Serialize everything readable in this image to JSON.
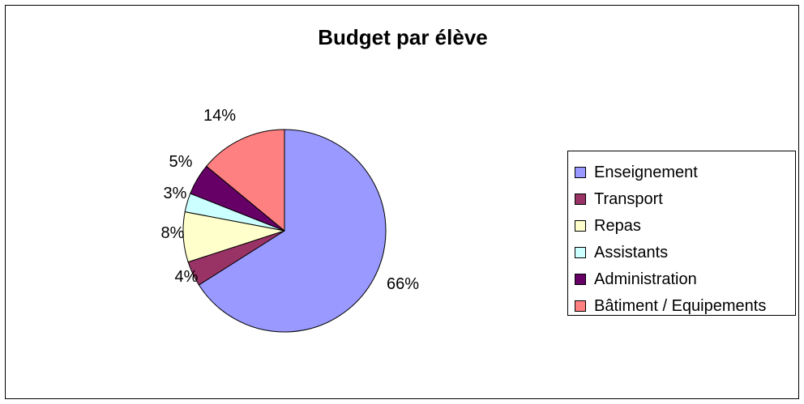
{
  "chart_data": {
    "type": "pie",
    "title": "Budget par élève",
    "categories": [
      "Enseignement",
      "Transport",
      "Repas",
      "Assistants",
      "Administration",
      "Bâtiment / Equipements"
    ],
    "values": [
      66,
      4,
      8,
      3,
      5,
      14
    ],
    "labels": [
      "66%",
      "4%",
      "8%",
      "3%",
      "5%",
      "14%"
    ],
    "colors": [
      "#9999ff",
      "#993366",
      "#ffffcc",
      "#ccffff",
      "#660066",
      "#ff8080"
    ],
    "legend_position": "right"
  }
}
